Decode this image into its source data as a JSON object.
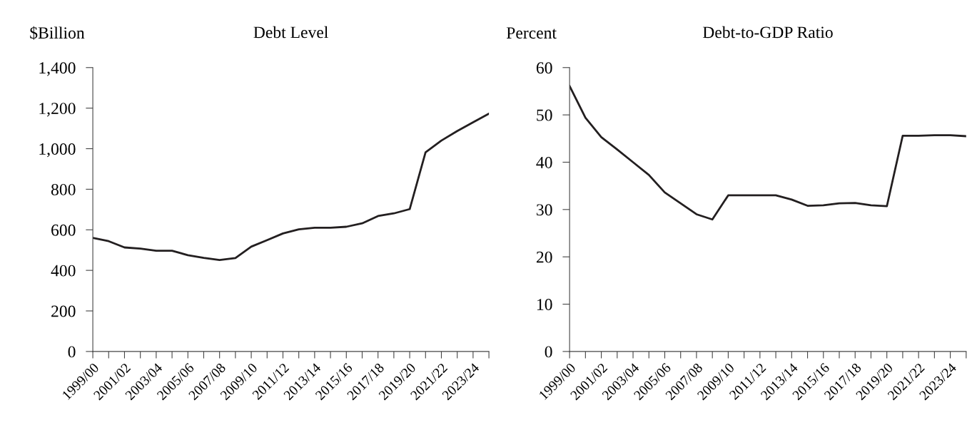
{
  "chart_data": [
    {
      "type": "line",
      "title": "Debt Level",
      "ylabel": "$Billion",
      "categories": [
        "1999/00",
        null,
        "2001/02",
        null,
        "2003/04",
        null,
        "2005/06",
        null,
        "2007/08",
        null,
        "2009/10",
        null,
        "2011/12",
        null,
        "2013/14",
        null,
        "2015/16",
        null,
        "2017/18",
        null,
        "2019/20",
        null,
        "2021/22",
        null,
        "2023/24",
        null
      ],
      "series": [
        {
          "color": "#231f20",
          "values": [
            560,
            544,
            513,
            507,
            497,
            497,
            475,
            462,
            451,
            461,
            517,
            549,
            582,
            602,
            610,
            610,
            615,
            632,
            668,
            681,
            702,
            982,
            1040,
            1087,
            1130,
            1173
          ]
        }
      ],
      "ylim": [
        0,
        1400
      ],
      "yticks": [
        0,
        200,
        400,
        600,
        800,
        {
          "value": 1000,
          "label": "1,000"
        },
        {
          "value": 1200,
          "label": "1,200"
        },
        {
          "value": 1400,
          "label": "1,400"
        }
      ],
      "grid": false,
      "legend": false,
      "marker": "none",
      "line_style": "solid"
    },
    {
      "type": "line",
      "title": "Debt-to-GDP Ratio",
      "ylabel": "Percent",
      "categories": [
        "1999/00",
        null,
        "2001/02",
        null,
        "2003/04",
        null,
        "2005/06",
        null,
        "2007/08",
        null,
        "2009/10",
        null,
        "2011/12",
        null,
        "2013/14",
        null,
        "2015/16",
        null,
        "2017/18",
        null,
        "2019/20",
        null,
        "2021/22",
        null,
        "2023/24",
        null
      ],
      "series": [
        {
          "color": "#231f20",
          "values": [
            56.1,
            49.4,
            45.3,
            42.7,
            40.0,
            37.3,
            33.6,
            31.3,
            29.0,
            27.9,
            33.0,
            33.0,
            33.0,
            33.0,
            32.1,
            30.8,
            30.9,
            31.3,
            31.4,
            30.9,
            30.7,
            45.6,
            45.6,
            45.7,
            45.7,
            45.5
          ]
        }
      ],
      "ylim": [
        0,
        60
      ],
      "yticks": [
        0,
        10,
        20,
        30,
        40,
        50,
        60
      ],
      "grid": false,
      "legend": false,
      "marker": "none",
      "line_style": "solid"
    }
  ]
}
